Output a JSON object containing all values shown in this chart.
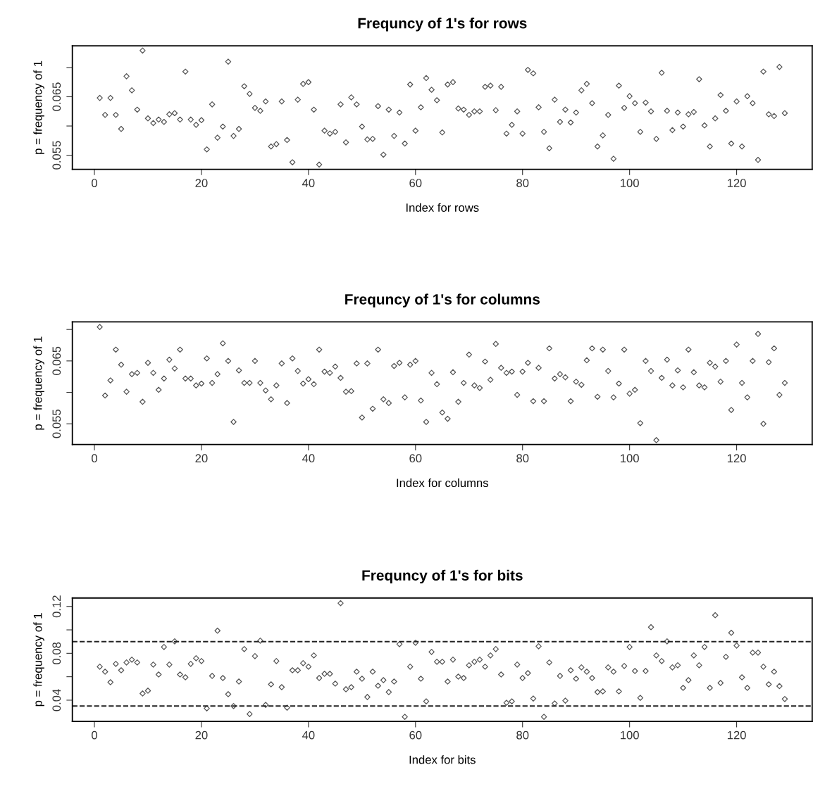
{
  "chart_data": [
    {
      "type": "scatter",
      "title": "Frequncy of 1's for rows",
      "xlabel": "Index for rows",
      "ylabel": "p = frequency of 1",
      "marker": "diamond",
      "grid": false,
      "legend": false,
      "x": [
        1,
        2,
        3,
        4,
        5,
        6,
        7,
        8,
        9,
        10,
        11,
        12,
        13,
        14,
        15,
        16,
        17,
        18,
        19,
        20,
        21,
        22,
        23,
        24,
        25,
        26,
        27,
        28,
        29,
        30,
        31,
        32,
        33,
        34,
        35,
        36,
        37,
        38,
        39,
        40,
        41,
        42,
        43,
        44,
        45,
        46,
        47,
        48,
        49,
        50,
        51,
        52,
        53,
        54,
        55,
        56,
        57,
        58,
        59,
        60,
        61,
        62,
        63,
        64,
        65,
        66,
        67,
        68,
        69,
        70,
        71,
        72,
        73,
        74,
        75,
        76,
        77,
        78,
        79,
        80,
        81,
        82,
        83,
        84,
        85,
        86,
        87,
        88,
        89,
        90,
        91,
        92,
        93,
        94,
        95,
        96,
        97,
        98,
        99,
        100,
        101,
        102,
        103,
        104,
        105,
        106,
        107,
        108,
        109,
        110,
        111,
        112,
        113,
        114,
        115,
        116,
        117,
        118,
        119,
        120,
        121,
        122,
        123,
        124,
        125,
        126,
        127,
        128,
        129
      ],
      "series": [
        {
          "color": "#555555",
          "values": [
            0.0648,
            0.0619,
            0.0648,
            0.0619,
            0.0595,
            0.0685,
            0.0661,
            0.0628,
            0.0729,
            0.0613,
            0.0605,
            0.0611,
            0.0607,
            0.062,
            0.0622,
            0.0611,
            0.0693,
            0.0611,
            0.0602,
            0.061,
            0.056,
            0.0637,
            0.058,
            0.0599,
            0.071,
            0.0583,
            0.0595,
            0.0668,
            0.0655,
            0.0631,
            0.0626,
            0.0642,
            0.0565,
            0.0569,
            0.0642,
            0.0576,
            0.0538,
            0.0645,
            0.0672,
            0.0675,
            0.0628,
            0.0534,
            0.0592,
            0.0587,
            0.059,
            0.0637,
            0.0572,
            0.0649,
            0.0637,
            0.0599,
            0.0577,
            0.0578,
            0.0634,
            0.0551,
            0.0628,
            0.0583,
            0.0623,
            0.057,
            0.0671,
            0.0592,
            0.0632,
            0.0682,
            0.0662,
            0.0644,
            0.0589,
            0.0671,
            0.0675,
            0.063,
            0.0628,
            0.0619,
            0.0625,
            0.0625,
            0.0667,
            0.0669,
            0.0627,
            0.0667,
            0.0587,
            0.0602,
            0.0625,
            0.0587,
            0.0696,
            0.069,
            0.0632,
            0.059,
            0.0562,
            0.0645,
            0.0607,
            0.0628,
            0.0606,
            0.0623,
            0.0661,
            0.0672,
            0.0639,
            0.0565,
            0.0584,
            0.0619,
            0.0544,
            0.0669,
            0.0631,
            0.0651,
            0.0639,
            0.059,
            0.064,
            0.0625,
            0.0578,
            0.0691,
            0.0626,
            0.0593,
            0.0623,
            0.0599,
            0.062,
            0.0624,
            0.068,
            0.0601,
            0.0565,
            0.0613,
            0.0653,
            0.0626,
            0.057,
            0.0642,
            0.0565,
            0.0651,
            0.0639,
            0.0542,
            0.0693,
            0.062,
            0.0617,
            0.0701,
            0.0622
          ]
        }
      ],
      "xlim": [
        -4.12,
        134.12
      ],
      "xticks": [
        0,
        20,
        40,
        60,
        80,
        100,
        120
      ],
      "ylim": [
        0.0526,
        0.0737
      ],
      "yticks": [
        0.055,
        {
          "value": 0.06,
          "label": null
        },
        0.065,
        {
          "value": 0.07,
          "label": null
        }
      ]
    },
    {
      "type": "scatter",
      "title": "Frequncy of 1's for columns",
      "xlabel": "Index for columns",
      "ylabel": "p = frequency of 1",
      "marker": "diamond",
      "grid": false,
      "legend": false,
      "x": [
        1,
        2,
        3,
        4,
        5,
        6,
        7,
        8,
        9,
        10,
        11,
        12,
        13,
        14,
        15,
        16,
        17,
        18,
        19,
        20,
        21,
        22,
        23,
        24,
        25,
        26,
        27,
        28,
        29,
        30,
        31,
        32,
        33,
        34,
        35,
        36,
        37,
        38,
        39,
        40,
        41,
        42,
        43,
        44,
        45,
        46,
        47,
        48,
        49,
        50,
        51,
        52,
        53,
        54,
        55,
        56,
        57,
        58,
        59,
        60,
        61,
        62,
        63,
        64,
        65,
        66,
        67,
        68,
        69,
        70,
        71,
        72,
        73,
        74,
        75,
        76,
        77,
        78,
        79,
        80,
        81,
        82,
        83,
        84,
        85,
        86,
        87,
        88,
        89,
        90,
        91,
        92,
        93,
        94,
        95,
        96,
        97,
        98,
        99,
        100,
        101,
        102,
        103,
        104,
        105,
        106,
        107,
        108,
        109,
        110,
        111,
        112,
        113,
        114,
        115,
        116,
        117,
        118,
        119,
        120,
        121,
        122,
        123,
        124,
        125,
        126,
        127,
        128,
        129
      ],
      "series": [
        {
          "color": "#555555",
          "values": [
            0.0704,
            0.0595,
            0.0619,
            0.0668,
            0.0644,
            0.0601,
            0.0629,
            0.0631,
            0.0585,
            0.0647,
            0.0631,
            0.0604,
            0.0622,
            0.0652,
            0.0638,
            0.0668,
            0.0622,
            0.0622,
            0.0611,
            0.0614,
            0.0654,
            0.0615,
            0.0629,
            0.0678,
            0.065,
            0.0553,
            0.0635,
            0.0615,
            0.0615,
            0.065,
            0.0615,
            0.0603,
            0.0589,
            0.0611,
            0.0646,
            0.0583,
            0.0654,
            0.0634,
            0.0614,
            0.0621,
            0.0613,
            0.0668,
            0.0633,
            0.0631,
            0.0641,
            0.0623,
            0.0601,
            0.0602,
            0.0646,
            0.056,
            0.0646,
            0.0574,
            0.0668,
            0.0589,
            0.0583,
            0.0642,
            0.0647,
            0.0592,
            0.0644,
            0.065,
            0.0587,
            0.0553,
            0.0631,
            0.0613,
            0.0568,
            0.0558,
            0.0632,
            0.0585,
            0.0615,
            0.066,
            0.0611,
            0.0607,
            0.0649,
            0.062,
            0.0677,
            0.0639,
            0.0631,
            0.0633,
            0.0596,
            0.0633,
            0.0647,
            0.0586,
            0.0639,
            0.0586,
            0.067,
            0.0622,
            0.0629,
            0.0624,
            0.0586,
            0.0617,
            0.0612,
            0.0651,
            0.067,
            0.0593,
            0.0668,
            0.0634,
            0.0592,
            0.0614,
            0.0668,
            0.0598,
            0.0604,
            0.0551,
            0.065,
            0.0634,
            0.0524,
            0.0623,
            0.0652,
            0.0611,
            0.0635,
            0.0608,
            0.0668,
            0.0632,
            0.0611,
            0.0608,
            0.0647,
            0.0641,
            0.0617,
            0.065,
            0.0572,
            0.0676,
            0.0615,
            0.0592,
            0.065,
            0.0693,
            0.055,
            0.0648,
            0.067,
            0.0596,
            0.0615
          ]
        }
      ],
      "xlim": [
        -4.12,
        134.12
      ],
      "xticks": [
        0,
        20,
        40,
        60,
        80,
        100,
        120
      ],
      "ylim": [
        0.0517,
        0.0712
      ],
      "yticks": [
        0.055,
        {
          "value": 0.06,
          "label": null
        },
        0.065,
        {
          "value": 0.07,
          "label": null
        }
      ]
    },
    {
      "type": "scatter",
      "title": "Frequncy of 1's for bits",
      "xlabel": "Index for bits",
      "ylabel": "p = frequency of 1",
      "marker": "diamond",
      "grid": false,
      "legend": false,
      "x": [
        1,
        2,
        3,
        4,
        5,
        6,
        7,
        8,
        9,
        10,
        11,
        12,
        13,
        14,
        15,
        16,
        17,
        18,
        19,
        20,
        21,
        22,
        23,
        24,
        25,
        26,
        27,
        28,
        29,
        30,
        31,
        32,
        33,
        34,
        35,
        36,
        37,
        38,
        39,
        40,
        41,
        42,
        43,
        44,
        45,
        46,
        47,
        48,
        49,
        50,
        51,
        52,
        53,
        54,
        55,
        56,
        57,
        58,
        59,
        60,
        61,
        62,
        63,
        64,
        65,
        66,
        67,
        68,
        69,
        70,
        71,
        72,
        73,
        74,
        75,
        76,
        77,
        78,
        79,
        80,
        81,
        82,
        83,
        84,
        85,
        86,
        87,
        88,
        89,
        90,
        91,
        92,
        93,
        94,
        95,
        96,
        97,
        98,
        99,
        100,
        101,
        102,
        103,
        104,
        105,
        106,
        107,
        108,
        109,
        110,
        111,
        112,
        113,
        114,
        115,
        116,
        117,
        118,
        119,
        120,
        121,
        122,
        123,
        124,
        125,
        126,
        127,
        128,
        129
      ],
      "series": [
        {
          "color": "#555555",
          "values": [
            0.0686,
            0.0643,
            0.0553,
            0.071,
            0.0655,
            0.0722,
            0.0746,
            0.0722,
            0.0457,
            0.0481,
            0.0704,
            0.0619,
            0.0854,
            0.0704,
            0.0902,
            0.0619,
            0.0595,
            0.071,
            0.0758,
            0.0734,
            0.033,
            0.0607,
            0.0993,
            0.0589,
            0.0451,
            0.035,
            0.0559,
            0.0836,
            0.0282,
            0.0776,
            0.0908,
            0.036,
            0.0535,
            0.0734,
            0.0511,
            0.0336,
            0.0655,
            0.0655,
            0.0716,
            0.0686,
            0.0782,
            0.0589,
            0.0625,
            0.0625,
            0.0541,
            0.1228,
            0.0493,
            0.0511,
            0.0643,
            0.0583,
            0.0427,
            0.0643,
            0.0523,
            0.0571,
            0.0469,
            0.0559,
            0.0878,
            0.0258,
            0.0686,
            0.089,
            0.0583,
            0.039,
            0.0812,
            0.0728,
            0.0728,
            0.0559,
            0.0746,
            0.0601,
            0.0589,
            0.0698,
            0.0728,
            0.0746,
            0.0686,
            0.0782,
            0.0836,
            0.0619,
            0.0378,
            0.039,
            0.0704,
            0.0589,
            0.0631,
            0.0414,
            0.086,
            0.0258,
            0.0722,
            0.0372,
            0.0607,
            0.0396,
            0.0655,
            0.0583,
            0.068,
            0.0643,
            0.0589,
            0.0469,
            0.0475,
            0.068,
            0.0643,
            0.0475,
            0.0692,
            0.0854,
            0.0649,
            0.042,
            0.0649,
            0.1023,
            0.0782,
            0.0734,
            0.0902,
            0.068,
            0.0698,
            0.0505,
            0.0571,
            0.0782,
            0.0698,
            0.0854,
            0.0505,
            0.1125,
            0.0547,
            0.077,
            0.0975,
            0.0866,
            0.0595,
            0.0505,
            0.0806,
            0.0806,
            0.0686,
            0.0535,
            0.0643,
            0.052,
            0.041
          ]
        }
      ],
      "ref_lines": [
        {
          "axis": "y",
          "value": 0.09,
          "line_style": "dashed",
          "color": "#222222"
        },
        {
          "axis": "y",
          "value": 0.035,
          "line_style": "dashed",
          "color": "#222222"
        }
      ],
      "xlim": [
        -4.12,
        134.12
      ],
      "xticks": [
        0,
        20,
        40,
        60,
        80,
        100,
        120
      ],
      "ylim": [
        0.0219,
        0.1272
      ],
      "yticks": [
        0.04,
        {
          "value": 0.06,
          "label": null
        },
        0.08,
        {
          "value": 0.1,
          "label": null
        },
        0.12
      ]
    }
  ]
}
